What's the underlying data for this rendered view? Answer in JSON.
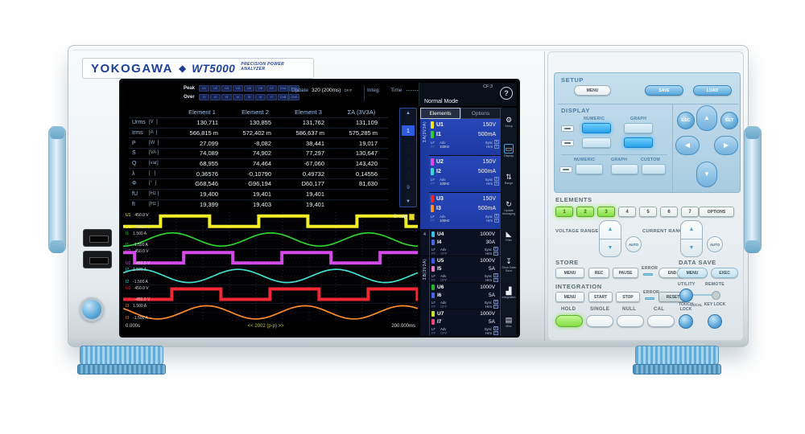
{
  "brand": {
    "maker": "YOKOGAWA",
    "diamond": "◆",
    "model": "WT5000",
    "tagline": "PRECISION POWER ANALYZER"
  },
  "screen": {
    "status": {
      "peak_label": "Peak",
      "over_label": "Over",
      "peak_channels": [
        "U1",
        "U2",
        "U3",
        "U4",
        "U5",
        "U6",
        "U7",
        "ChA",
        "ChC"
      ],
      "over_channels": [
        "I1",
        "I2",
        "I3",
        "I4",
        "I5",
        "I6",
        "I7",
        "ChB",
        "ChD"
      ],
      "update_label": "Update",
      "update_value": "320 (200ms)",
      "update_flag": "DF/F",
      "integ_label": "Integ:",
      "time_label": "Time",
      "time_value": "------:--:--"
    },
    "mode": {
      "name": "Normal Mode",
      "cf": "CF:3",
      "help": "?"
    },
    "table": {
      "columns": [
        "Element 1",
        "Element 2",
        "Element 3",
        "ΣA (3V3A)"
      ],
      "rows": [
        {
          "name": "Urms",
          "unit": "[V  ]",
          "values": [
            "130,711",
            "130,855",
            "131,762",
            "131,109"
          ]
        },
        {
          "name": "Irms",
          "unit": "[A  ]",
          "values": [
            "566,815 m",
            "572,402 m",
            "586,637 m",
            "575,285 m"
          ]
        },
        {
          "name": "P",
          "unit": "[W  ]",
          "values": [
            "27,099",
            "-8,082",
            "38,441",
            "19,017"
          ]
        },
        {
          "name": "S",
          "unit": "[VA ]",
          "values": [
            "74,089",
            "74,902",
            "77,297",
            "130,647"
          ]
        },
        {
          "name": "Q",
          "unit": "[var]",
          "values": [
            "68,955",
            "74,464",
            "-67,060",
            "143,420"
          ]
        },
        {
          "name": "λ",
          "unit": "[   ]",
          "values": [
            "0,36576",
            "-0,10790",
            "0,49732",
            "0,14556"
          ]
        },
        {
          "name": "Φ",
          "unit": "[°  ]",
          "values": [
            "G68,546",
            "G96,194",
            "D60,177",
            "81,630"
          ]
        },
        {
          "name": "fU",
          "unit": "[Hz ]",
          "values": [
            "19,400",
            "19,401",
            "19,401",
            ""
          ]
        },
        {
          "name": "fI",
          "unit": "[Hz ]",
          "values": [
            "19,399",
            "19,403",
            "19,401",
            ""
          ]
        }
      ]
    },
    "pager": {
      "up": "▲",
      "down": "▼",
      "current": "1",
      "dot": "·",
      "last": "9"
    },
    "elements_panel": {
      "tabs": [
        "Elements",
        "Options"
      ],
      "sub": {
        "lf": "LF",
        "ff": "FF",
        "adv": "Adv",
        "sync": "Sync",
        "hrm": "Hrm",
        "box_u": "U",
        "box_1": "1"
      },
      "groups": [
        {
          "label": "ΣA(3V3A)",
          "count": 3,
          "selected": true
        },
        {
          "label": "4",
          "count": 1,
          "selected": false
        },
        {
          "label": "ΣB(3V3A)",
          "count": 3,
          "selected": false
        }
      ],
      "items": [
        {
          "u_ch": "U1",
          "u_range": "150V",
          "u_color": "#f0e42a",
          "i_ch": "I1",
          "i_range": "500mA",
          "i_color": "#2ecc2e",
          "adv_value": "100Hz",
          "selected": true
        },
        {
          "u_ch": "U2",
          "u_range": "150V",
          "u_color": "#e048e0",
          "i_ch": "I2",
          "i_range": "500mA",
          "i_color": "#38d8d0",
          "adv_value": "100Hz",
          "selected": true
        },
        {
          "u_ch": "U3",
          "u_range": "150V",
          "u_color": "#f02828",
          "i_ch": "I3",
          "i_range": "500mA",
          "i_color": "#ff9028",
          "adv_value": "100Hz",
          "selected": true
        },
        {
          "u_ch": "U4",
          "u_range": "1000V",
          "u_color": "#38c0e8",
          "i_ch": "I4",
          "i_range": "30A",
          "i_color": "#4468e8",
          "adv_value": "OFF",
          "selected": false
        },
        {
          "u_ch": "U5",
          "u_range": "1000V",
          "u_color": "#3858e8",
          "i_ch": "I5",
          "i_range": "5A",
          "i_color": "#f078c8",
          "adv_value": "OFF",
          "selected": false
        },
        {
          "u_ch": "U6",
          "u_range": "1000V",
          "u_color": "#28b428",
          "i_ch": "I6",
          "i_range": "5A",
          "i_color": "#4468e8",
          "adv_value": "OFF",
          "selected": false
        },
        {
          "u_ch": "U7",
          "u_range": "1000V",
          "u_color": "#c8e028",
          "i_ch": "I7",
          "i_range": "5A",
          "i_color": "#f04878",
          "adv_value": "OFF",
          "selected": false
        }
      ]
    },
    "sidebar_icons": [
      {
        "glyph": "⚙",
        "label": "Setup",
        "highlight": false
      },
      {
        "glyph": "▭",
        "label": "Display",
        "highlight": true
      },
      {
        "glyph": "⇅",
        "label": "Range",
        "highlight": false
      },
      {
        "glyph": "↻",
        "label": "Update Averaging",
        "highlight": false
      },
      {
        "glyph": "◣",
        "label": "Filter",
        "highlight": false
      },
      {
        "glyph": "↧",
        "label": "Store Data Save",
        "highlight": false
      },
      {
        "glyph": "▟",
        "label": "Integration",
        "highlight": false
      },
      {
        "glyph": "▤",
        "label": "Misc",
        "highlight": false
      }
    ],
    "waveform": {
      "group_label": "Group",
      "t_start": "0.000s",
      "t_center": "<< 2002 (p-p) >>",
      "t_end": "200.000ms",
      "cycles": 3,
      "channels": [
        {
          "ch": "U1",
          "scale_top": "450.0 V",
          "scale_bottom": "-450.0 V",
          "color": "#f2ee26",
          "shape": "square",
          "phase": 0.62
        },
        {
          "ch": "I1",
          "scale_top": "1.500 A",
          "scale_bottom": "-1.500 A",
          "color": "#2ed42e",
          "shape": "sine",
          "phase": 0.25
        },
        {
          "ch": "U2",
          "scale_top": "450.0 V",
          "scale_bottom": "-450.0 V",
          "color": "#d44ae8",
          "shape": "square",
          "phase": 0.3833
        },
        {
          "ch": "I2",
          "scale_top": "1.500 A",
          "scale_bottom": "-1.500 A",
          "color": "#3fe0cf",
          "shape": "sine",
          "phase": 0.58
        },
        {
          "ch": "U3",
          "scale_top": "450.0 V",
          "scale_bottom": "-450.0 V",
          "color": "#f02834",
          "shape": "square",
          "phase": 0.505
        },
        {
          "ch": "I3",
          "scale_top": "1.500 A",
          "scale_bottom": "-1.500 A",
          "color": "#ff8c2a",
          "shape": "sine",
          "phase": 0.9
        }
      ]
    }
  },
  "panel": {
    "setup": {
      "label": "SETUP",
      "menu": "MENU",
      "save": "SAVE",
      "load": "LOAD"
    },
    "display": {
      "label": "DISPLAY",
      "numeric": "NUMERIC",
      "graph": "GRAPH",
      "custom": "CUSTOM"
    },
    "nav": {
      "esc": "ESC",
      "set": "SET",
      "up": "▲",
      "down": "▼",
      "left": "◀",
      "right": "▶"
    },
    "elements": {
      "label": "ELEMENTS",
      "options": "OPTIONS",
      "buttons": [
        {
          "label": "1",
          "lit": true
        },
        {
          "label": "2",
          "lit": true
        },
        {
          "label": "3",
          "lit": true
        },
        {
          "label": "4",
          "lit": false
        },
        {
          "label": "5",
          "lit": false
        },
        {
          "label": "6",
          "lit": false
        },
        {
          "label": "7",
          "lit": false
        }
      ]
    },
    "ranges": {
      "voltage": "VOLTAGE RANGE",
      "current": "CURRENT RANGE",
      "auto": "AUTO",
      "up": "▲",
      "down": "▼"
    },
    "store": {
      "label": "STORE",
      "menu": "MENU",
      "rec": "REC",
      "pause": "PAUSE",
      "error": "ERROR",
      "end": "END"
    },
    "data_save": {
      "label": "DATA SAVE",
      "menu": "MENU",
      "exec": "EXEC"
    },
    "integration": {
      "label": "INTEGRATION",
      "menu": "MENU",
      "start": "START",
      "stop": "STOP",
      "error": "ERROR",
      "reset": "RESET"
    },
    "utility": {
      "label": "UTILITY",
      "remote": "REMOTE",
      "local": "LOCAL"
    },
    "bottom": {
      "hold": "HOLD",
      "single": "SINGLE",
      "null_btn": "NULL",
      "cal": "CAL",
      "touch_lock": "TOUCH LOCK",
      "key_lock": "KEY LOCK"
    }
  }
}
